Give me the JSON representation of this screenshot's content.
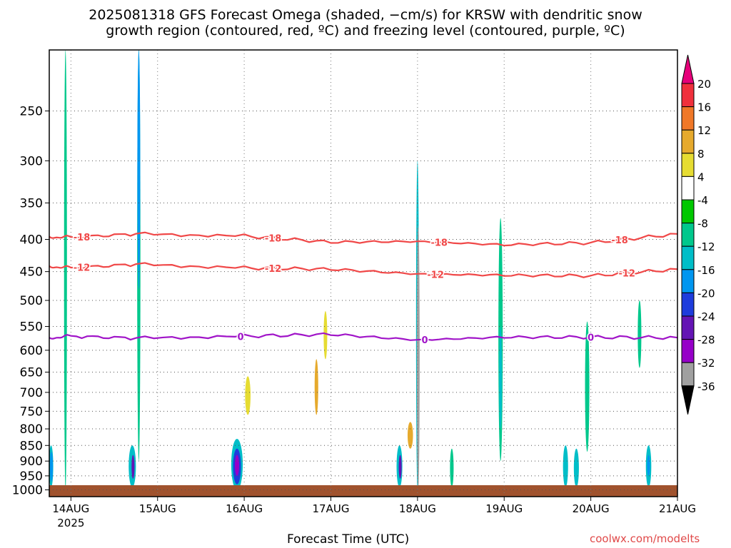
{
  "chart_data": {
    "type": "heatmap",
    "title_line1": "2025081318 GFS Forecast Omega (shaded, −cm/s) for KRSW with dendritic snow",
    "title_line2": "growth region (contoured, red, ºC) and freezing level (contoured, purple, ºC)",
    "xlabel": "Forecast Time (UTC)",
    "ylabel": "",
    "credit": "coolwx.com/modelts",
    "x_range_days": [
      0,
      7.25
    ],
    "x_range_hours": [
      0,
      174
    ],
    "x_start_label": "2025081318",
    "x_ticks": [
      {
        "label": "14AUG",
        "sublabel": "2025",
        "hour": 6
      },
      {
        "label": "15AUG",
        "hour": 30
      },
      {
        "label": "16AUG",
        "hour": 54
      },
      {
        "label": "17AUG",
        "hour": 78
      },
      {
        "label": "18AUG",
        "hour": 102
      },
      {
        "label": "19AUG",
        "hour": 126
      },
      {
        "label": "20AUG",
        "hour": 150
      },
      {
        "label": "21AUG",
        "hour": 174
      }
    ],
    "y_axis": "pressure (hPa), log scale, inverted",
    "y_range": [
      1025,
      200
    ],
    "y_ticks": [
      250,
      300,
      350,
      400,
      450,
      500,
      550,
      600,
      650,
      700,
      750,
      800,
      850,
      900,
      950,
      1000
    ],
    "grid": true,
    "colorbar": {
      "placement": "right",
      "levels": [
        "20",
        "16",
        "12",
        "8",
        "4",
        "-4",
        "-8",
        "-12",
        "-16",
        "-20",
        "-24",
        "-28",
        "-32",
        "-36"
      ],
      "colors": [
        "#e6007a",
        "#f0303c",
        "#f07828",
        "#e6aa2d",
        "#e6dc32",
        "#ffffff",
        "#00c800",
        "#00c88c",
        "#00bec8",
        "#0096f0",
        "#1e3cdc",
        "#6414b4",
        "#9600c8",
        "#a0a0a0",
        "#000000"
      ]
    },
    "contours": [
      {
        "name": "-18",
        "color": "#f04848",
        "points": [
          [
            0,
            396
          ],
          [
            6,
            397
          ],
          [
            24,
            392
          ],
          [
            54,
            395
          ],
          [
            78,
            404
          ],
          [
            102,
            403
          ],
          [
            126,
            408
          ],
          [
            150,
            405
          ],
          [
            174,
            392
          ]
        ],
        "labels": [
          {
            "x": 9,
            "text": "-18"
          },
          {
            "x": 62,
            "text": "-18"
          },
          {
            "x": 108,
            "text": "-18"
          },
          {
            "x": 158,
            "text": "-18"
          }
        ]
      },
      {
        "name": "-12",
        "color": "#f04848",
        "points": [
          [
            0,
            441
          ],
          [
            6,
            444
          ],
          [
            24,
            438
          ],
          [
            54,
            444
          ],
          [
            78,
            446
          ],
          [
            102,
            454
          ],
          [
            126,
            456
          ],
          [
            150,
            457
          ],
          [
            174,
            446
          ]
        ],
        "labels": [
          {
            "x": 9,
            "text": "-12"
          },
          {
            "x": 62,
            "text": "-12"
          },
          {
            "x": 107,
            "text": "-12"
          },
          {
            "x": 160,
            "text": "-12"
          }
        ]
      },
      {
        "name": "0",
        "color": "#a014c8",
        "points": [
          [
            0,
            573
          ],
          [
            6,
            570
          ],
          [
            24,
            574
          ],
          [
            54,
            570
          ],
          [
            78,
            566
          ],
          [
            102,
            578
          ],
          [
            126,
            572
          ],
          [
            150,
            572
          ],
          [
            174,
            573
          ]
        ],
        "labels": [
          {
            "x": 53,
            "text": "0"
          },
          {
            "x": 104,
            "text": "0"
          },
          {
            "x": 150,
            "text": "0"
          }
        ]
      }
    ],
    "omega_features": [
      {
        "x": 0.5,
        "p": [
          850,
          990
        ],
        "w": 1.2,
        "level": "-12"
      },
      {
        "x": 0.6,
        "p": [
          870,
          970
        ],
        "w": 0.6,
        "level": "-16"
      },
      {
        "x": 4.5,
        "p": [
          200,
          1000
        ],
        "w": 0.8,
        "level": "-8"
      },
      {
        "x": 23,
        "p": [
          850,
          990
        ],
        "w": 2.0,
        "level": "-12"
      },
      {
        "x": 23.2,
        "p": [
          880,
          960
        ],
        "w": 0.8,
        "level": "-24"
      },
      {
        "x": 24.8,
        "p": [
          200,
          900
        ],
        "w": 0.9,
        "level": "-8"
      },
      {
        "x": 24.8,
        "p": [
          200,
          480
        ],
        "w": 0.5,
        "level": "-16"
      },
      {
        "x": 52,
        "p": [
          830,
          1000
        ],
        "w": 3.2,
        "level": "-12"
      },
      {
        "x": 52,
        "p": [
          860,
          980
        ],
        "w": 2.2,
        "level": "-20"
      },
      {
        "x": 52,
        "p": [
          880,
          950
        ],
        "w": 1.2,
        "level": "-28"
      },
      {
        "x": 55,
        "p": [
          660,
          760
        ],
        "w": 1.5,
        "level": "8"
      },
      {
        "x": 74,
        "p": [
          620,
          760
        ],
        "w": 1.0,
        "level": "12"
      },
      {
        "x": 76.5,
        "p": [
          520,
          620
        ],
        "w": 1.0,
        "level": "8"
      },
      {
        "x": 97,
        "p": [
          850,
          990
        ],
        "w": 1.6,
        "level": "-12"
      },
      {
        "x": 97.2,
        "p": [
          880,
          960
        ],
        "w": 0.6,
        "level": "-24"
      },
      {
        "x": 100,
        "p": [
          780,
          860
        ],
        "w": 1.5,
        "level": "12"
      },
      {
        "x": 102,
        "p": [
          300,
          1000
        ],
        "w": 0.8,
        "level": "-12"
      },
      {
        "x": 102.2,
        "p": [
          380,
          1000
        ],
        "w": 0.4,
        "level": "-32"
      },
      {
        "x": 111.5,
        "p": [
          860,
          990
        ],
        "w": 1.0,
        "level": "-8"
      },
      {
        "x": 125,
        "p": [
          370,
          900
        ],
        "w": 1.2,
        "level": "-8"
      },
      {
        "x": 125,
        "p": [
          550,
          800
        ],
        "w": 0.5,
        "level": "-12"
      },
      {
        "x": 143,
        "p": [
          850,
          990
        ],
        "w": 1.4,
        "level": "-12"
      },
      {
        "x": 146,
        "p": [
          860,
          990
        ],
        "w": 1.4,
        "level": "-12"
      },
      {
        "x": 149,
        "p": [
          540,
          870
        ],
        "w": 1.2,
        "level": "-8"
      },
      {
        "x": 163.5,
        "p": [
          500,
          640
        ],
        "w": 1.0,
        "level": "-8"
      },
      {
        "x": 166,
        "p": [
          850,
          990
        ],
        "w": 1.5,
        "level": "-12"
      },
      {
        "x": 166,
        "p": [
          880,
          950
        ],
        "w": 0.6,
        "level": "-16"
      },
      {
        "x": 128,
        "p": [
          200,
          380
        ],
        "w": 1.5,
        "level": "4"
      },
      {
        "x": 137,
        "p": [
          210,
          290
        ],
        "w": 3.0,
        "level": "4"
      },
      {
        "x": 155,
        "p": [
          200,
          240
        ],
        "w": 4.0,
        "level": "4"
      },
      {
        "x": 169,
        "p": [
          210,
          380
        ],
        "w": 1.5,
        "level": "4"
      }
    ]
  }
}
